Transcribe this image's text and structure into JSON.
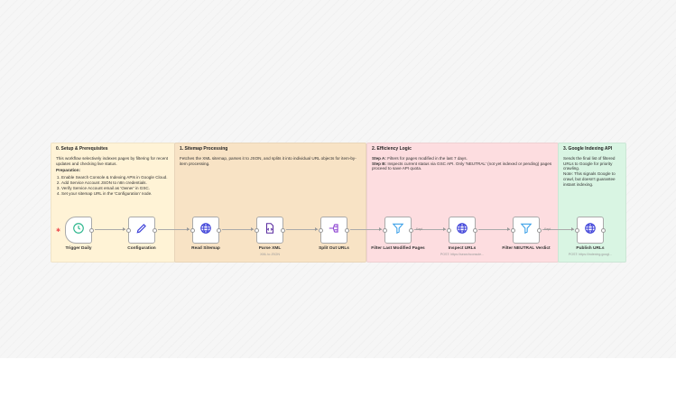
{
  "notes": [
    {
      "title": "0. Setup & Prerequisites",
      "color": "#fff3d6",
      "body": "This workflow selectively indexes pages by filtering for recent updates and checking live status.",
      "prep_title": "Preparation:",
      "steps": [
        "Enable Search Console & Indexing APIs in Google Cloud.",
        "Add Service Account JSON to n8n credentials.",
        "Verify Service Account email as 'Owner' in GSC.",
        "Set your sitemap URL in the 'Configuration' node."
      ]
    },
    {
      "title": "1. Sitemap Processing",
      "color": "#f8e3c5",
      "body": "Fetches the XML sitemap, parses it to JSON, and splits it into individual URL objects for item-by-item processing."
    },
    {
      "title": "2. Efficiency Logic",
      "color": "#fddde0",
      "step_a_label": "Step A:",
      "step_a": " Filters for pages modified in the last 7 days.",
      "step_b_label": "Step B:",
      "step_b": " Inspects current status via GSC API. Only 'NEUTRAL' (not yet indexed or pending) pages proceed to save API quota."
    },
    {
      "title": "3. Google Indexing API",
      "color": "#d9f5e3",
      "body": "Sends the final list of filtered URLs to Google for priority crawling.",
      "note": "Note: This signals Google to crawl, but doesn't guarantee instant indexing."
    }
  ],
  "nodes": [
    {
      "label": "Trigger Daily",
      "icon": "clock-icon"
    },
    {
      "label": "Configuration",
      "icon": "pencil-icon"
    },
    {
      "label": "Read Sitemap",
      "icon": "globe-icon"
    },
    {
      "label": "Parse XML",
      "icon": "xml-file-icon",
      "subtitle": "XML to JSON"
    },
    {
      "label": "Split Out URLs",
      "icon": "split-icon"
    },
    {
      "label": "Filter Last Modified Pages",
      "icon": "filter-icon"
    },
    {
      "label": "Inspect URLs",
      "icon": "globe-icon",
      "subtitle": "POST: https://searchconsole..."
    },
    {
      "label": "Filter NEUTRAL Verdict",
      "icon": "filter-icon"
    },
    {
      "label": "Publish URLs",
      "icon": "globe-icon",
      "subtitle": "POST: https://indexing.googl..."
    }
  ],
  "kept_label": "Kept"
}
